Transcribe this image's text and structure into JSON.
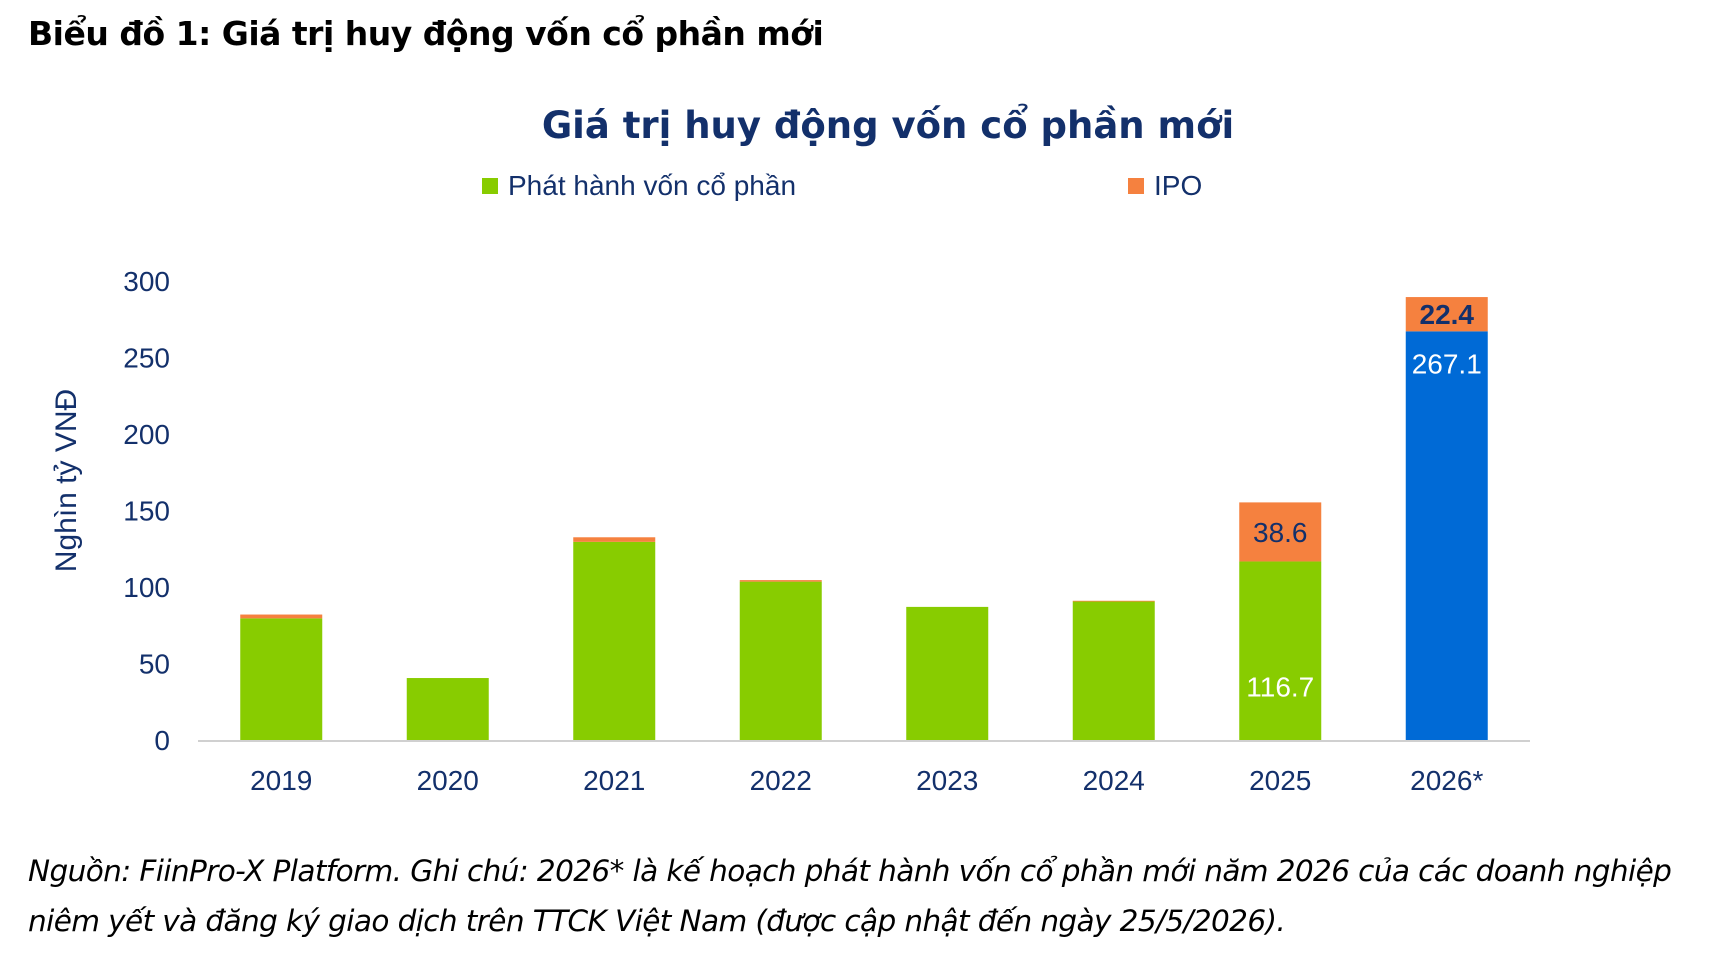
{
  "heading": "Biểu đồ 1: Giá trị huy động vốn cổ phần mới",
  "source_note": {
    "line1": "Nguồn: FiinPro-X Platform. Ghi chú: 2026* là kế hoạch phát hành vốn cổ phần mới năm 2026 của các doanh nghiệp",
    "line2": "niêm yết và đăng ký giao dịch trên TTCK Việt Nam (được cập nhật đến ngày 25/5/2026)."
  },
  "chart_data": {
    "type": "bar",
    "stacked": true,
    "title": "Giá trị huy động vốn cổ phần mới",
    "xlabel": "",
    "ylabel": "Nghìn tỷ VNĐ",
    "ylim": [
      0,
      300
    ],
    "yticks": [
      "0",
      "50",
      "100",
      "150",
      "200",
      "250",
      "300"
    ],
    "categories": [
      "2019",
      "2020",
      "2021",
      "2022",
      "2023",
      "2024",
      "2025",
      "2026*"
    ],
    "series": [
      {
        "name": "Phát hành vốn cổ phần",
        "color": "#88cc00",
        "values": [
          79.5,
          40.5,
          129.5,
          103.5,
          87.0,
          90.5,
          116.7,
          267.1
        ],
        "labels": [
          "",
          "",
          "",
          "",
          "",
          "",
          "116.7",
          "267.1"
        ]
      },
      {
        "name": "IPO",
        "color": "#f5813f",
        "values": [
          2.5,
          0,
          3.0,
          1.0,
          0,
          0.5,
          38.6,
          22.4
        ],
        "labels": [
          "",
          "",
          "",
          "",
          "",
          "",
          "38.6",
          "22.4"
        ]
      }
    ],
    "highlight": {
      "category": "2026*",
      "color": "#006ad6"
    },
    "legend_position": "top",
    "grid": false
  }
}
